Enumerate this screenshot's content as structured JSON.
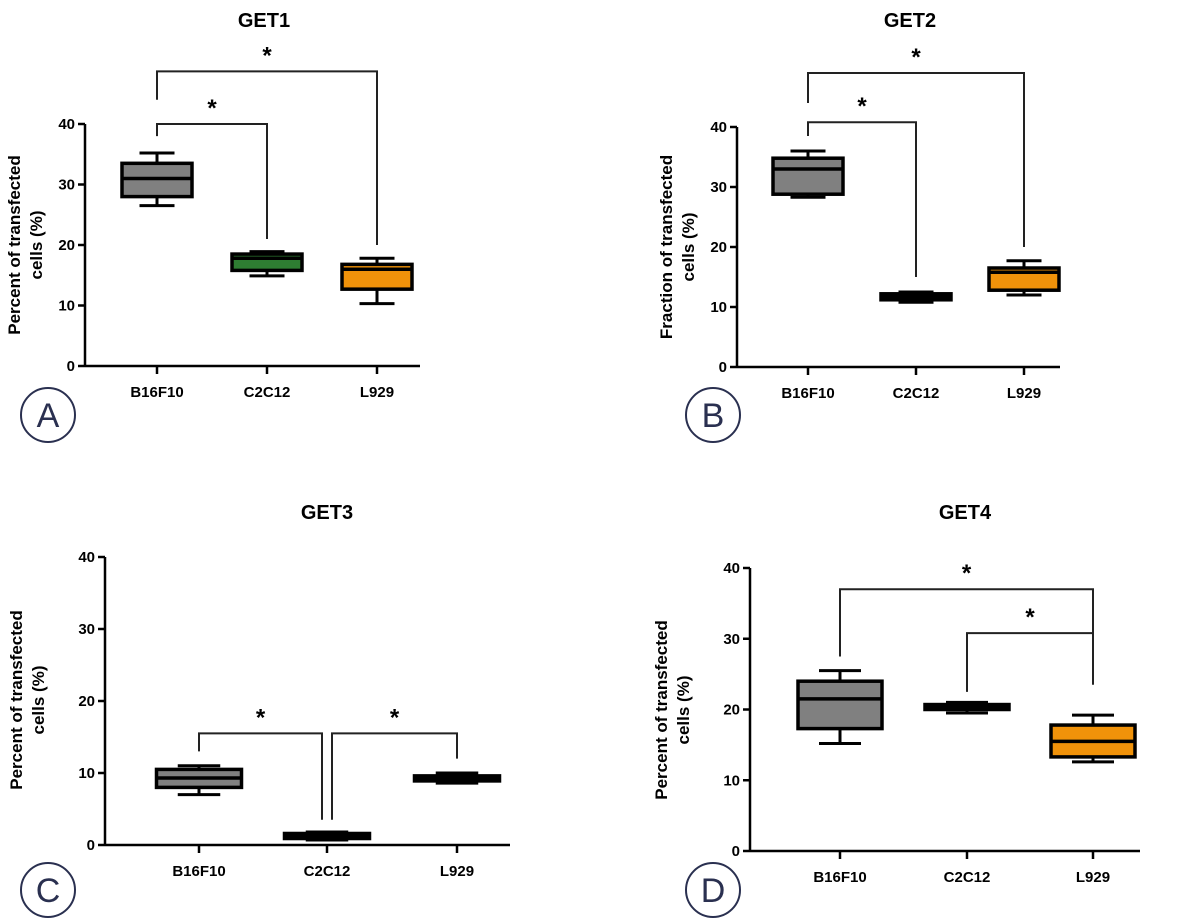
{
  "chart_data": [
    {
      "type": "box",
      "panel_letter": "A",
      "title": "GET1",
      "ylabel": [
        "Percent of transfected",
        "cells (%)"
      ],
      "ylim": [
        0,
        40
      ],
      "yticks": [
        0,
        10,
        20,
        30,
        40
      ],
      "categories": [
        "B16F10",
        "C2C12",
        "L929"
      ],
      "boxes": [
        {
          "min": 26.5,
          "q1": 28,
          "median": 31,
          "q3": 33.5,
          "max": 35.2,
          "color": "#808080"
        },
        {
          "min": 14.9,
          "q1": 15.8,
          "median": 17.8,
          "q3": 18.5,
          "max": 18.9,
          "color": "#2e7d32"
        },
        {
          "min": 10.3,
          "q1": 12.7,
          "median": 16,
          "q3": 16.8,
          "max": 17.8,
          "color": "#f0920a"
        }
      ],
      "significance": [
        {
          "from": 0,
          "to": 1,
          "level": 40,
          "left_end": 38,
          "right_end": 21,
          "label": "*"
        },
        {
          "from": 0,
          "to": 2,
          "level": 48.7,
          "left_end": 44,
          "right_end": 20,
          "label": "*"
        }
      ]
    },
    {
      "type": "box",
      "panel_letter": "B",
      "title": "GET2",
      "ylabel": [
        "Fraction of transfected",
        "cells (%)"
      ],
      "ylim": [
        0,
        40
      ],
      "yticks": [
        0,
        10,
        20,
        30,
        40
      ],
      "categories": [
        "B16F10",
        "C2C12",
        "L929"
      ],
      "boxes": [
        {
          "min": 28.3,
          "q1": 28.8,
          "median": 33,
          "q3": 34.8,
          "max": 36,
          "color": "#808080"
        },
        {
          "min": 10.8,
          "q1": 11.2,
          "median": 11.7,
          "q3": 12.2,
          "max": 12.5,
          "color": "#000000"
        },
        {
          "min": 12,
          "q1": 12.8,
          "median": 15.8,
          "q3": 16.5,
          "max": 17.7,
          "color": "#f0920a"
        }
      ],
      "significance": [
        {
          "from": 0,
          "to": 1,
          "level": 40.8,
          "left_end": 38.5,
          "right_end": 15,
          "label": "*"
        },
        {
          "from": 0,
          "to": 2,
          "level": 49,
          "left_end": 44,
          "right_end": 20,
          "label": "*"
        }
      ]
    },
    {
      "type": "box",
      "panel_letter": "C",
      "title": "GET3",
      "ylabel": [
        "Percent of transfected",
        "cells (%)"
      ],
      "ylim": [
        0,
        40
      ],
      "yticks": [
        0,
        10,
        20,
        30,
        40
      ],
      "categories": [
        "B16F10",
        "C2C12",
        "L929"
      ],
      "boxes": [
        {
          "min": 7,
          "q1": 8,
          "median": 9.3,
          "q3": 10.5,
          "max": 11,
          "color": "#808080"
        },
        {
          "min": 0.7,
          "q1": 0.9,
          "median": 1.2,
          "q3": 1.6,
          "max": 1.8,
          "color": "#000000"
        },
        {
          "min": 8.6,
          "q1": 8.9,
          "median": 9.3,
          "q3": 9.6,
          "max": 10,
          "color": "#808080"
        }
      ],
      "significance": [
        {
          "from": 0,
          "to": 1,
          "level": 15.5,
          "left_end": 13,
          "right_end": 3.5,
          "label": "*"
        },
        {
          "from": 1,
          "to": 2,
          "level": 15.5,
          "left_end": 3.5,
          "right_end": 12,
          "label": "*"
        }
      ]
    },
    {
      "type": "box",
      "panel_letter": "D",
      "title": "GET4",
      "ylabel": [
        "Percent of transfected",
        "cells (%)"
      ],
      "ylim": [
        0,
        40
      ],
      "yticks": [
        0,
        10,
        20,
        30,
        40
      ],
      "categories": [
        "B16F10",
        "C2C12",
        "L929"
      ],
      "boxes": [
        {
          "min": 15.2,
          "q1": 17.3,
          "median": 21.5,
          "q3": 24,
          "max": 25.5,
          "color": "#808080"
        },
        {
          "min": 19.5,
          "q1": 20,
          "median": 20.3,
          "q3": 20.7,
          "max": 21,
          "color": "#000000"
        },
        {
          "min": 12.6,
          "q1": 13.3,
          "median": 15.5,
          "q3": 17.8,
          "max": 19.2,
          "color": "#f0920a"
        }
      ],
      "significance": [
        {
          "from": 0,
          "to": 2,
          "level": 37,
          "left_end": 27.5,
          "right_end": 24,
          "label": "*"
        },
        {
          "from": 1,
          "to": 2,
          "level": 30.8,
          "left_end": 22.5,
          "right_end": 23.5,
          "label": "*"
        }
      ]
    }
  ]
}
